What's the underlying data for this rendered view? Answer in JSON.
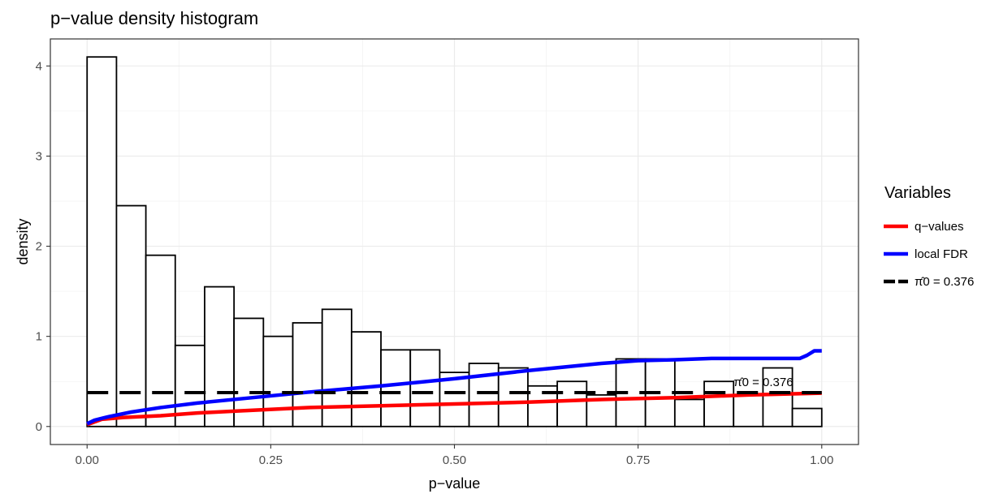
{
  "chart_data": {
    "type": "histogram",
    "title": "p−value density histogram",
    "xlabel": "p−value",
    "ylabel": "density",
    "xlim": [
      -0.05,
      1.05
    ],
    "ylim": [
      -0.2,
      4.3
    ],
    "x_ticks": [
      0.0,
      0.25,
      0.5,
      0.75,
      1.0
    ],
    "x_tick_labels": [
      "0.00",
      "0.25",
      "0.50",
      "0.75",
      "1.00"
    ],
    "y_ticks": [
      0,
      1,
      2,
      3,
      4
    ],
    "y_tick_labels": [
      "0",
      "1",
      "2",
      "3",
      "4"
    ],
    "grid": true,
    "histogram": {
      "bin_width": 0.04,
      "bin_starts": [
        0.0,
        0.04,
        0.08,
        0.12,
        0.16,
        0.2,
        0.24,
        0.28,
        0.32,
        0.36,
        0.4,
        0.44,
        0.48,
        0.52,
        0.56,
        0.6,
        0.64,
        0.68,
        0.72,
        0.76,
        0.8,
        0.84,
        0.88,
        0.92,
        0.96
      ],
      "values": [
        4.1,
        2.45,
        1.9,
        0.9,
        1.55,
        1.2,
        1.0,
        1.15,
        1.3,
        1.05,
        0.85,
        0.85,
        0.6,
        0.7,
        0.65,
        0.45,
        0.5,
        0.35,
        0.75,
        0.75,
        0.3,
        0.5,
        0.35,
        0.65,
        0.2
      ]
    },
    "series": [
      {
        "name": "q−values",
        "color": "#ff0000",
        "x": [
          0.0,
          0.02,
          0.05,
          0.1,
          0.15,
          0.2,
          0.3,
          0.4,
          0.5,
          0.6,
          0.7,
          0.8,
          0.9,
          1.0
        ],
        "y": [
          0.02,
          0.08,
          0.1,
          0.12,
          0.15,
          0.17,
          0.21,
          0.23,
          0.25,
          0.27,
          0.3,
          0.32,
          0.35,
          0.37
        ]
      },
      {
        "name": "local FDR",
        "color": "#0000ff",
        "x": [
          0.0,
          0.01,
          0.03,
          0.06,
          0.1,
          0.15,
          0.2,
          0.3,
          0.4,
          0.5,
          0.6,
          0.7,
          0.75,
          0.8,
          0.85,
          0.9,
          0.97,
          0.98,
          0.99,
          1.0
        ],
        "y": [
          0.03,
          0.07,
          0.11,
          0.16,
          0.21,
          0.26,
          0.3,
          0.38,
          0.45,
          0.53,
          0.62,
          0.7,
          0.73,
          0.74,
          0.755,
          0.755,
          0.755,
          0.79,
          0.84,
          0.84
        ]
      },
      {
        "name": "π̂0 = 0.376",
        "color": "#000000",
        "dashed": true,
        "x": [
          0.0,
          1.0
        ],
        "y": [
          0.376,
          0.376
        ]
      }
    ],
    "annotations": [
      {
        "text": "π̂0 = 0.376",
        "x": 0.88,
        "y": 0.45
      }
    ],
    "legend": {
      "title": "Variables",
      "placement": "right",
      "entries": [
        {
          "label": "q−values",
          "color": "#ff0000",
          "dashed": false
        },
        {
          "label": "local FDR",
          "color": "#0000ff",
          "dashed": false
        },
        {
          "label": "π̂0 = 0.376",
          "color": "#000000",
          "dashed": true
        }
      ]
    }
  }
}
